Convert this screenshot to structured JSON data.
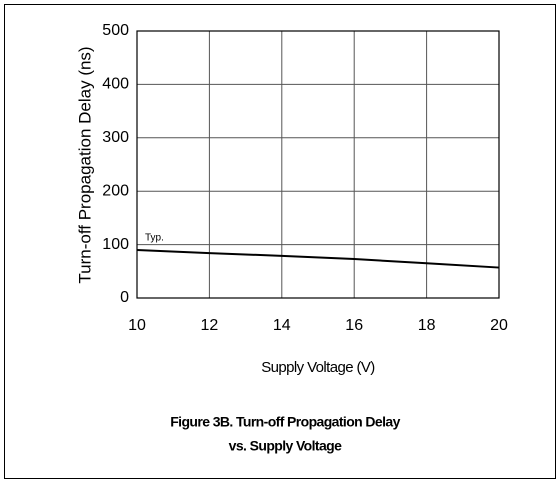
{
  "chart_data": {
    "type": "line",
    "title": [
      "Figure 3B. Turn-off Propagation Delay",
      "vs. Supply Voltage"
    ],
    "x_label": "Supply Voltage (V)",
    "y_label": "Turn-off Propagation Delay (ns)",
    "annotation": "Typ.",
    "x": [
      10,
      12,
      14,
      16,
      18,
      20
    ],
    "series": [
      {
        "name": "Typ.",
        "color": "#000000",
        "values": [
          90,
          84,
          79,
          73,
          65,
          57
        ]
      }
    ],
    "xlim": [
      10,
      20
    ],
    "xticks": [
      10,
      12,
      14,
      16,
      18,
      20
    ],
    "ylim": [
      0,
      500
    ],
    "yticks": [
      0,
      100,
      200,
      300,
      400,
      500
    ],
    "grid": true
  }
}
